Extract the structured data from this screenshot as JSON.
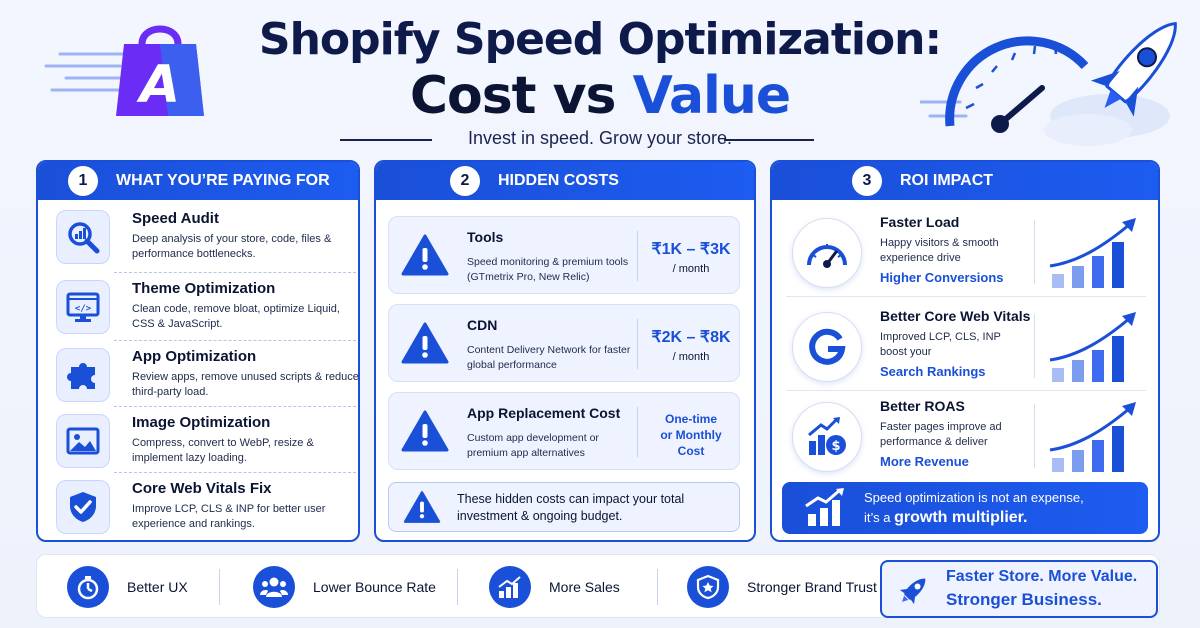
{
  "header": {
    "title_line1": "Shopify Speed Optimization:",
    "title_line2_a": "Cost vs ",
    "title_line2_b": "Value",
    "subtitle": "Invest in speed. Grow your store.",
    "logo_letter": "A"
  },
  "colors": {
    "primary": "#1a4fd8",
    "navy": "#0e1a4a",
    "light_bg": "#eef3ff",
    "logo_purple": "#6b2cf5"
  },
  "panel1": {
    "number": "1",
    "heading": "WHAT YOU’RE PAYING FOR",
    "items": [
      {
        "title": "Speed Audit",
        "desc": "Deep analysis of your store, code, files & performance bottlenecks.",
        "icon": "magnifier-chart-icon"
      },
      {
        "title": "Theme Optimization",
        "desc": "Clean code, remove bloat, optimize Liquid, CSS & JavaScript.",
        "icon": "code-monitor-icon"
      },
      {
        "title": "App Optimization",
        "desc": "Review apps, remove unused scripts & reduce third-party load.",
        "icon": "puzzle-icon"
      },
      {
        "title": "Image Optimization",
        "desc": "Compress, convert to WebP, resize & implement lazy loading.",
        "icon": "image-icon"
      },
      {
        "title": "Core Web Vitals Fix",
        "desc": "Improve LCP, CLS & INP for better user experience and rankings.",
        "icon": "shield-check-icon"
      }
    ]
  },
  "panel2": {
    "number": "2",
    "heading": "HIDDEN COSTS",
    "cards": [
      {
        "title": "Tools",
        "desc": "Speed monitoring & premium tools (GTmetrix Pro, New Relic)",
        "cost": "₹1K – ₹3K",
        "unit": "/ month"
      },
      {
        "title": "CDN",
        "desc": "Content Delivery Network for faster global performance",
        "cost": "₹2K – ₹8K",
        "unit": "/ month"
      },
      {
        "title": "App Replacement Cost",
        "desc": "Custom app development or premium app alternatives",
        "cost_line1": "One-time",
        "cost_line2": "or Monthly",
        "cost_line3": "Cost"
      }
    ],
    "note": "These hidden costs can impact your total investment & ongoing budget."
  },
  "panel3": {
    "number": "3",
    "heading": "ROI IMPACT",
    "rows": [
      {
        "title": "Faster Load",
        "desc": "Happy visitors & smooth experience drive",
        "highlight": "Higher Conversions",
        "icon": "speedometer-icon"
      },
      {
        "title": "Better Core Web Vitals",
        "desc": "Improved LCP, CLS, INP boost your",
        "highlight": "Search Rankings",
        "icon": "google-icon"
      },
      {
        "title": "Better ROAS",
        "desc": "Faster pages improve ad performance & deliver",
        "highlight": "More Revenue",
        "icon": "growth-dollar-icon"
      }
    ],
    "banner_line1": "Speed optimization is not an expense,",
    "banner_line2_a": "it’s a ",
    "banner_line2_b": "growth multiplier."
  },
  "bottom": {
    "items": [
      {
        "label": "Better UX",
        "icon": "stopwatch-icon"
      },
      {
        "label": "Lower Bounce Rate",
        "icon": "users-icon"
      },
      {
        "label": "More Sales",
        "icon": "sales-chart-icon"
      },
      {
        "label": "Stronger Brand Trust",
        "icon": "shield-star-icon"
      }
    ],
    "final_line1": "Faster Store. More Value.",
    "final_line2": "Stronger Business."
  }
}
